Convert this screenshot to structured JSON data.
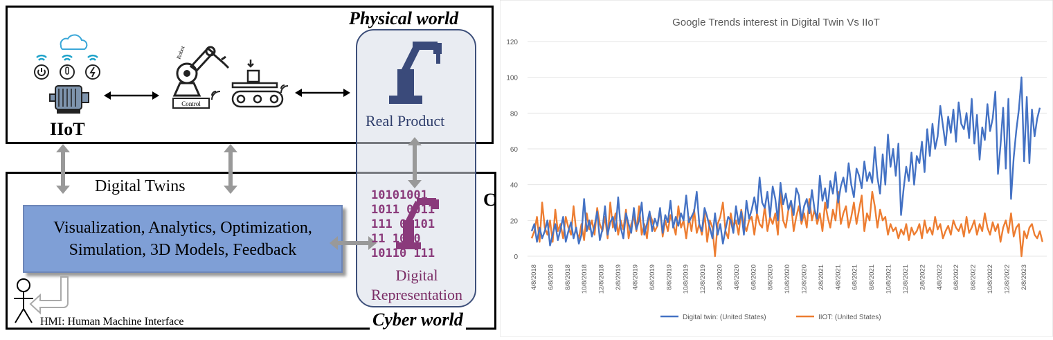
{
  "diagram": {
    "physical_world_title": "Physical world",
    "cyber_world_title": "Cyber world",
    "iiot_label": "IIoT",
    "robot_label": "Robot",
    "control_label": "Control",
    "real_product_label": "Real Product",
    "digital_twins_label": "Digital Twins",
    "box_line1": "Visualization, Analytics, Optimization,",
    "box_line2": "Simulation, 3D Models, Feedback",
    "digital_rep_line1": "Digital",
    "digital_rep_line2": "Representation",
    "binary_lines": [
      "10101001",
      "1011 0011",
      "111 01101",
      "11 1000",
      "10110 111"
    ],
    "hmi_label": "HMI: Human Machine Interface",
    "cut_off_letter": "C"
  },
  "chart_data": {
    "type": "line",
    "title": "Google Trends interest in Digital Twin Vs IIoT",
    "ylim": [
      0,
      120
    ],
    "yticks": [
      0,
      20,
      40,
      60,
      80,
      100,
      120
    ],
    "xtick_labels": [
      "4/8/2018",
      "6/8/2018",
      "8/8/2018",
      "10/8/2018",
      "12/8/2018",
      "2/8/2019",
      "4/8/2019",
      "6/8/2019",
      "8/8/2019",
      "10/8/2019",
      "12/8/2019",
      "2/8/2020",
      "4/8/2020",
      "6/8/2020",
      "8/8/2020",
      "10/8/2020",
      "12/8/2020",
      "2/8/2021",
      "4/8/2021",
      "6/8/2021",
      "8/8/2021",
      "10/8/2021",
      "12/8/2021",
      "2/8/2022",
      "4/8/2022",
      "6/8/2022",
      "8/8/2022",
      "10/8/2022",
      "12/8/2022",
      "2/8/2023"
    ],
    "legend_position": "bottom",
    "series": [
      {
        "name": "Digital twin: (United States)",
        "color": "#4472c4",
        "values": [
          14,
          18,
          8,
          16,
          10,
          14,
          20,
          6,
          12,
          18,
          9,
          15,
          22,
          8,
          14,
          19,
          10,
          16,
          7,
          12,
          32,
          14,
          20,
          11,
          17,
          25,
          9,
          15,
          28,
          12,
          19,
          22,
          14,
          33,
          16,
          10,
          24,
          18,
          13,
          27,
          15,
          20,
          30,
          12,
          18,
          25,
          14,
          21,
          17,
          27,
          13,
          23,
          19,
          31,
          16,
          22,
          17,
          24,
          20,
          34,
          19,
          22,
          25,
          36,
          18,
          14,
          27,
          22,
          16,
          10,
          24,
          12,
          18,
          7,
          15,
          22,
          20,
          13,
          28,
          18,
          25,
          12,
          31,
          21,
          26,
          33,
          24,
          44,
          30,
          27,
          36,
          22,
          39,
          32,
          20,
          41,
          29,
          35,
          26,
          31,
          23,
          38,
          34,
          20,
          28,
          32,
          24,
          37,
          26,
          21,
          45,
          31,
          38,
          27,
          42,
          35,
          47,
          30,
          39,
          44,
          36,
          52,
          40,
          33,
          49,
          45,
          38,
          53,
          42,
          47,
          41,
          61,
          44,
          35,
          57,
          40,
          68,
          50,
          60,
          45,
          63,
          23,
          38,
          50,
          42,
          58,
          40,
          56,
          52,
          64,
          47,
          71,
          56,
          74,
          60,
          67,
          84,
          73,
          62,
          78,
          69,
          82,
          64,
          86,
          74,
          71,
          80,
          66,
          88,
          63,
          79,
          54,
          72,
          65,
          85,
          70,
          77,
          92,
          46,
          62,
          83,
          49,
          88,
          32,
          55,
          70,
          82,
          100,
          53,
          89,
          52,
          82,
          67,
          77,
          83
        ],
        "legend_color": "#4472c4"
      },
      {
        "name": "IIOT: (United States)",
        "color": "#ed7d31",
        "values": [
          10,
          14,
          22,
          8,
          30,
          16,
          12,
          20,
          8,
          26,
          14,
          18,
          10,
          22,
          16,
          12,
          28,
          14,
          10,
          18,
          9,
          24,
          15,
          20,
          12,
          27,
          18,
          14,
          22,
          10,
          30,
          16,
          24,
          12,
          20,
          15,
          26,
          10,
          18,
          22,
          14,
          28,
          12,
          18,
          10,
          24,
          20,
          14,
          17,
          26,
          11,
          20,
          14,
          23,
          18,
          12,
          28,
          16,
          20,
          10,
          22,
          14,
          26,
          13,
          18,
          12,
          24,
          8,
          20,
          16,
          0,
          18,
          22,
          30,
          14,
          10,
          24,
          16,
          20,
          12,
          26,
          18,
          14,
          20,
          22,
          12,
          24,
          18,
          16,
          28,
          14,
          22,
          18,
          24,
          12,
          36,
          20,
          16,
          26,
          30,
          14,
          22,
          28,
          18,
          24,
          16,
          32,
          20,
          26,
          18,
          24,
          14,
          30,
          22,
          16,
          26,
          20,
          36,
          18,
          24,
          28,
          16,
          22,
          30,
          18,
          26,
          34,
          14,
          24,
          20,
          36,
          28,
          16,
          26,
          20,
          22,
          12,
          18,
          14,
          16,
          10,
          15,
          12,
          18,
          9,
          16,
          12,
          14,
          18,
          10,
          20,
          13,
          16,
          12,
          22,
          15,
          18,
          10,
          14,
          17,
          12,
          20,
          16,
          14,
          18,
          11,
          22,
          13,
          16,
          20,
          12,
          18,
          14,
          24,
          16,
          12,
          19,
          14,
          18,
          8,
          16,
          20,
          13,
          24,
          11,
          16,
          18,
          0,
          14,
          10,
          16,
          18,
          12,
          10,
          14,
          8
        ]
      }
    ]
  }
}
